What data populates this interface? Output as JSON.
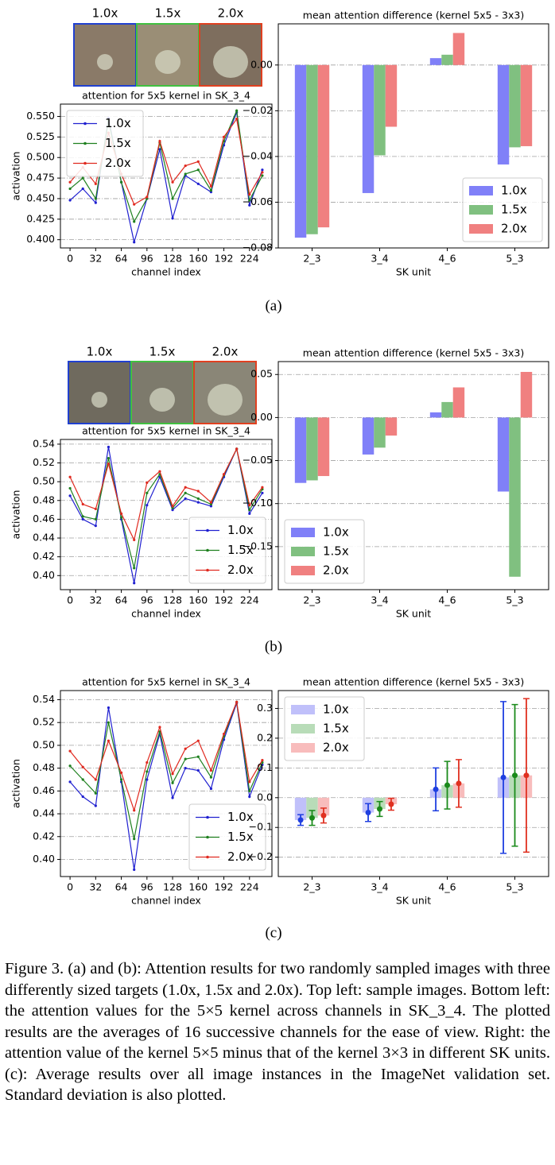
{
  "panels": [
    {
      "label": "(a)",
      "image_labels": [
        "1.0x",
        "1.5x",
        "2.0x"
      ]
    },
    {
      "label": "(b)",
      "image_labels": [
        "1.0x",
        "1.5x",
        "2.0x"
      ]
    },
    {
      "label": "(c)"
    }
  ],
  "caption": "Figure 3. (a) and (b): Attention results for two randomly sampled images with three differently sized targets (1.0x, 1.5x and 2.0x). Top left: sample images. Bottom left: the attention values for the 5×5 kernel across channels in SK_3_4. The plotted results are the averages of 16 successive channels for the ease of view. Right: the attention value of the kernel 5×5 minus that of the kernel 3×3 in different SK units. (c): Average results over all image instances in the ImageNet validation set. Standard deviation is also plotted.",
  "chart_data": [
    {
      "type": "line",
      "title": "attention for 5x5 kernel in SK_3_4",
      "x_label": "channel index",
      "y_label": "activation",
      "x": [
        0,
        16,
        32,
        48,
        64,
        80,
        96,
        112,
        128,
        144,
        160,
        176,
        192,
        208,
        224,
        240
      ],
      "series": [
        {
          "name": "1.0x",
          "color": "#2020d0",
          "values": [
            0.448,
            0.462,
            0.445,
            0.548,
            0.47,
            0.397,
            0.45,
            0.51,
            0.426,
            0.478,
            0.468,
            0.458,
            0.515,
            0.555,
            0.442,
            0.485
          ]
        },
        {
          "name": "1.5x",
          "color": "#1f801f",
          "values": [
            0.462,
            0.475,
            0.45,
            0.545,
            0.47,
            0.422,
            0.45,
            0.518,
            0.45,
            0.48,
            0.485,
            0.46,
            0.52,
            0.557,
            0.448,
            0.478
          ]
        },
        {
          "name": "2.0x",
          "color": "#e02a20",
          "values": [
            0.47,
            0.488,
            0.468,
            0.53,
            0.48,
            0.443,
            0.452,
            0.52,
            0.47,
            0.49,
            0.495,
            0.465,
            0.525,
            0.547,
            0.455,
            0.482
          ]
        }
      ],
      "xlim": [
        -12,
        252
      ],
      "xticks": [
        0,
        32,
        64,
        96,
        128,
        160,
        192,
        224
      ],
      "ylim": [
        0.39,
        0.565
      ],
      "yticks": [
        {
          "value": 0.4,
          "label": "0.400"
        },
        {
          "value": 0.425,
          "label": "0.425"
        },
        {
          "value": 0.45,
          "label": "0.450"
        },
        {
          "value": 0.475,
          "label": "0.475"
        },
        {
          "value": 0.5,
          "label": "0.500"
        },
        {
          "value": 0.525,
          "label": "0.525"
        },
        {
          "value": 0.55,
          "label": "0.550"
        }
      ],
      "grid": true,
      "legend": "upper left"
    },
    {
      "type": "bar",
      "title": "mean attention difference (kernel 5x5 - 3x3)",
      "x_label": "SK unit",
      "categories": [
        "2_3",
        "3_4",
        "4_6",
        "5_3"
      ],
      "series": [
        {
          "name": "1.0x",
          "color": "#8080f8",
          "values": [
            -0.0755,
            -0.056,
            0.003,
            -0.0435
          ]
        },
        {
          "name": "1.5x",
          "color": "#80c080",
          "values": [
            -0.074,
            -0.0395,
            0.0045,
            -0.036
          ]
        },
        {
          "name": "2.0x",
          "color": "#f08080",
          "values": [
            -0.071,
            -0.027,
            0.014,
            -0.0355
          ]
        }
      ],
      "ylim": [
        -0.08,
        0.018
      ],
      "yticks": [
        {
          "value": -0.08,
          "label": "−0.08"
        },
        {
          "value": -0.06,
          "label": "−0.06"
        },
        {
          "value": -0.04,
          "label": "−0.04"
        },
        {
          "value": -0.02,
          "label": "−0.02"
        },
        {
          "value": 0,
          "label": "0.00"
        }
      ],
      "grid": true,
      "legend": "lower right"
    },
    {
      "type": "line",
      "title": "attention for 5x5 kernel in SK_3_4",
      "x_label": "channel index",
      "y_label": "activation",
      "x": [
        0,
        16,
        32,
        48,
        64,
        80,
        96,
        112,
        128,
        144,
        160,
        176,
        192,
        208,
        224,
        240
      ],
      "series": [
        {
          "name": "1.0x",
          "color": "#2020d0",
          "values": [
            0.485,
            0.46,
            0.453,
            0.537,
            0.46,
            0.392,
            0.475,
            0.505,
            0.47,
            0.482,
            0.478,
            0.474,
            0.505,
            0.535,
            0.466,
            0.488
          ]
        },
        {
          "name": "1.5x",
          "color": "#1f801f",
          "values": [
            0.493,
            0.463,
            0.46,
            0.525,
            0.462,
            0.408,
            0.488,
            0.508,
            0.472,
            0.488,
            0.482,
            0.476,
            0.507,
            0.535,
            0.47,
            0.492
          ]
        },
        {
          "name": "2.0x",
          "color": "#e02a20",
          "values": [
            0.505,
            0.476,
            0.471,
            0.519,
            0.466,
            0.438,
            0.499,
            0.511,
            0.474,
            0.494,
            0.49,
            0.478,
            0.508,
            0.535,
            0.475,
            0.494
          ]
        }
      ],
      "xlim": [
        -12,
        252
      ],
      "xticks": [
        0,
        32,
        64,
        96,
        128,
        160,
        192,
        224
      ],
      "ylim": [
        0.385,
        0.545
      ],
      "yticks": [
        {
          "value": 0.4,
          "label": "0.40"
        },
        0.42,
        0.44,
        0.46,
        0.48,
        {
          "value": 0.5,
          "label": "0.50"
        },
        0.52,
        0.54
      ],
      "grid": true,
      "legend": "lower right"
    },
    {
      "type": "bar",
      "title": "mean attention difference (kernel 5x5 - 3x3)",
      "x_label": "SK unit",
      "categories": [
        "2_3",
        "3_4",
        "4_6",
        "5_3"
      ],
      "series": [
        {
          "name": "1.0x",
          "color": "#8080f8",
          "values": [
            -0.076,
            -0.043,
            0.006,
            -0.086
          ]
        },
        {
          "name": "1.5x",
          "color": "#80c080",
          "values": [
            -0.073,
            -0.035,
            0.018,
            -0.185
          ]
        },
        {
          "name": "2.0x",
          "color": "#f08080",
          "values": [
            -0.068,
            -0.021,
            0.035,
            0.053
          ]
        }
      ],
      "ylim": [
        -0.2,
        0.065
      ],
      "yticks": [
        {
          "value": -0.15,
          "label": "−0.15"
        },
        {
          "value": -0.1,
          "label": "−0.10"
        },
        {
          "value": -0.05,
          "label": "−0.05"
        },
        {
          "value": 0,
          "label": "0.00"
        },
        0.05
      ],
      "grid": true,
      "legend": "lower left"
    },
    {
      "type": "line",
      "title": "attention for 5x5 kernel in SK_3_4",
      "x_label": "channel index",
      "y_label": "activation",
      "x": [
        0,
        16,
        32,
        48,
        64,
        80,
        96,
        112,
        128,
        144,
        160,
        176,
        192,
        208,
        224,
        240
      ],
      "series": [
        {
          "name": "1.0x",
          "color": "#2020d0",
          "values": [
            0.468,
            0.455,
            0.447,
            0.533,
            0.468,
            0.391,
            0.47,
            0.51,
            0.454,
            0.48,
            0.478,
            0.462,
            0.505,
            0.537,
            0.455,
            0.483
          ]
        },
        {
          "name": "1.5x",
          "color": "#1f801f",
          "values": [
            0.482,
            0.47,
            0.458,
            0.52,
            0.47,
            0.418,
            0.477,
            0.512,
            0.467,
            0.488,
            0.49,
            0.472,
            0.508,
            0.538,
            0.46,
            0.485
          ]
        },
        {
          "name": "2.0x",
          "color": "#e02a20",
          "values": [
            0.495,
            0.481,
            0.47,
            0.504,
            0.476,
            0.443,
            0.485,
            0.516,
            0.475,
            0.497,
            0.504,
            0.478,
            0.51,
            0.538,
            0.468,
            0.487
          ]
        }
      ],
      "xlim": [
        -12,
        252
      ],
      "xticks": [
        0,
        32,
        64,
        96,
        128,
        160,
        192,
        224
      ],
      "ylim": [
        0.385,
        0.548
      ],
      "yticks": [
        {
          "value": 0.4,
          "label": "0.40"
        },
        0.42,
        0.44,
        0.46,
        0.48,
        {
          "value": 0.5,
          "label": "0.50"
        },
        0.52,
        0.54
      ],
      "grid": true,
      "legend": "lower right"
    },
    {
      "type": "bar",
      "title": "mean attention difference (kernel 5x5 - 3x3)",
      "x_label": "SK unit",
      "categories": [
        "2_3",
        "3_4",
        "4_6",
        "5_3"
      ],
      "series": [
        {
          "name": "1.0x",
          "color": "#c0c0fa",
          "error_color": "#1f3fe0",
          "values": [
            -0.075,
            -0.05,
            0.028,
            0.068
          ],
          "errors": [
            0.018,
            0.03,
            0.072,
            0.255
          ]
        },
        {
          "name": "1.5x",
          "color": "#b8dcb8",
          "error_color": "#1a8a1a",
          "values": [
            -0.068,
            -0.038,
            0.042,
            0.075
          ],
          "errors": [
            0.025,
            0.025,
            0.08,
            0.238
          ]
        },
        {
          "name": "2.0x",
          "color": "#f8bcbc",
          "error_color": "#e03020",
          "values": [
            -0.06,
            -0.022,
            0.048,
            0.075
          ],
          "errors": [
            0.025,
            0.02,
            0.08,
            0.258
          ]
        }
      ],
      "ylim": [
        -0.265,
        0.36
      ],
      "yticks": [
        {
          "value": -0.2,
          "label": "−0.2"
        },
        {
          "value": -0.1,
          "label": "−0.1"
        },
        {
          "value": 0,
          "label": "0.0"
        },
        0.1,
        0.2,
        0.3
      ],
      "grid": true,
      "legend": "upper left"
    }
  ]
}
